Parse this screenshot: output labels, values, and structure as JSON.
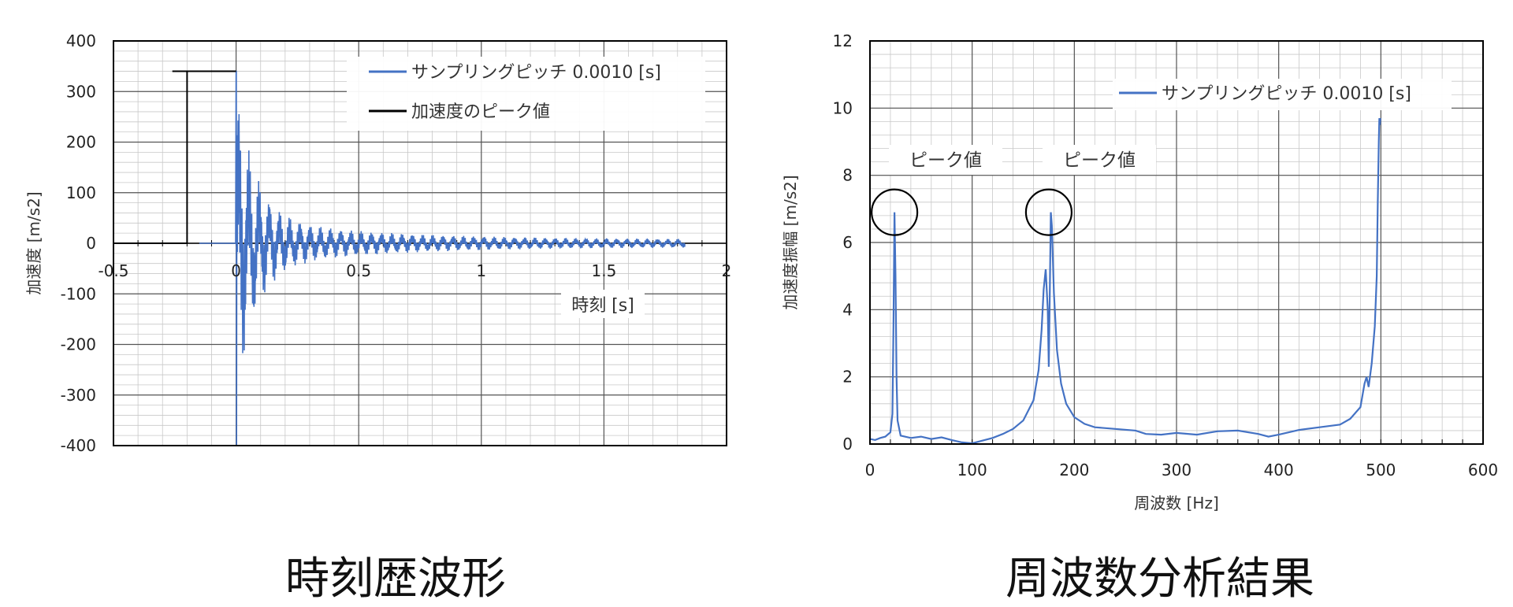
{
  "chart_data": [
    {
      "type": "line",
      "caption": "時刻歴波形",
      "xlabel": "時刻 [s]",
      "ylabel": "加速度 [m/s2]",
      "xlim": [
        -0.5,
        2
      ],
      "ylim": [
        -400,
        400
      ],
      "x_ticks": [
        "-0.5",
        "0",
        "0.5",
        "1",
        "1.5",
        "2"
      ],
      "y_ticks": [
        "400",
        "300",
        "200",
        "100",
        "0",
        "-100",
        "-200",
        "-300",
        "-400"
      ],
      "grid": true,
      "legend_position": "top-right",
      "series": [
        {
          "name": "サンプリングピッチ 0.0010 [s]",
          "color": "#4472C4",
          "waveform": {
            "pre_trigger_start": -0.15,
            "impact_time": 0,
            "end_time": 1.83,
            "peak_max": 340,
            "peak_min": -400,
            "envelope_at_0_1s": 100,
            "envelope_at_0_5s": 20,
            "envelope_tail": 9
          }
        },
        {
          "name": "加速度のピーク値",
          "color": "#000000",
          "points": [
            [
              -0.26,
              340
            ],
            [
              0,
              340
            ],
            [
              -0.2,
              340
            ],
            [
              -0.2,
              0
            ],
            [
              -0.5,
              0
            ]
          ]
        }
      ]
    },
    {
      "type": "line",
      "caption": "周波数分析結果",
      "xlabel": "周波数 [Hz]",
      "ylabel": "加速度振幅 [m/s2]",
      "xlim": [
        0,
        600
      ],
      "ylim": [
        0,
        12
      ],
      "x_ticks": [
        "0",
        "100",
        "200",
        "300",
        "400",
        "500",
        "600"
      ],
      "y_ticks": [
        "12",
        "10",
        "8",
        "6",
        "4",
        "2",
        "0"
      ],
      "grid": true,
      "legend_position": "top-right",
      "annotations": [
        {
          "text": "ピーク値",
          "x": 24,
          "y": 6.9
        },
        {
          "text": "ピーク値",
          "x": 175,
          "y": 6.9
        }
      ],
      "series": [
        {
          "name": "サンプリングピッチ 0.0010 [s]",
          "color": "#4472C4",
          "points": [
            [
              0,
              0.15
            ],
            [
              5,
              0.12
            ],
            [
              10,
              0.18
            ],
            [
              15,
              0.22
            ],
            [
              20,
              0.35
            ],
            [
              22,
              0.9
            ],
            [
              23,
              3.5
            ],
            [
              24,
              6.9
            ],
            [
              25,
              5.0
            ],
            [
              26,
              2.0
            ],
            [
              27,
              0.7
            ],
            [
              30,
              0.25
            ],
            [
              40,
              0.18
            ],
            [
              50,
              0.22
            ],
            [
              60,
              0.15
            ],
            [
              70,
              0.2
            ],
            [
              80,
              0.12
            ],
            [
              90,
              0.05
            ],
            [
              100,
              0.02
            ],
            [
              110,
              0.1
            ],
            [
              120,
              0.18
            ],
            [
              130,
              0.3
            ],
            [
              140,
              0.45
            ],
            [
              150,
              0.7
            ],
            [
              160,
              1.3
            ],
            [
              165,
              2.2
            ],
            [
              168,
              3.4
            ],
            [
              170,
              4.6
            ],
            [
              172,
              5.2
            ],
            [
              174,
              4.0
            ],
            [
              175,
              2.3
            ],
            [
              176,
              4.5
            ],
            [
              177,
              6.9
            ],
            [
              178,
              6.5
            ],
            [
              180,
              4.5
            ],
            [
              183,
              2.8
            ],
            [
              187,
              1.8
            ],
            [
              192,
              1.2
            ],
            [
              200,
              0.8
            ],
            [
              210,
              0.6
            ],
            [
              220,
              0.5
            ],
            [
              240,
              0.45
            ],
            [
              260,
              0.4
            ],
            [
              270,
              0.3
            ],
            [
              285,
              0.28
            ],
            [
              300,
              0.33
            ],
            [
              320,
              0.28
            ],
            [
              340,
              0.38
            ],
            [
              360,
              0.4
            ],
            [
              380,
              0.3
            ],
            [
              390,
              0.22
            ],
            [
              400,
              0.28
            ],
            [
              420,
              0.42
            ],
            [
              440,
              0.5
            ],
            [
              460,
              0.58
            ],
            [
              470,
              0.75
            ],
            [
              480,
              1.1
            ],
            [
              484,
              1.8
            ],
            [
              486,
              2.0
            ],
            [
              488,
              1.7
            ],
            [
              491,
              2.4
            ],
            [
              494,
              3.5
            ],
            [
              496,
              5.0
            ],
            [
              497,
              7.2
            ],
            [
              498,
              9.0
            ],
            [
              498.5,
              9.7
            ],
            [
              499,
              9.5
            ],
            [
              499.5,
              9.7
            ]
          ]
        }
      ]
    }
  ]
}
